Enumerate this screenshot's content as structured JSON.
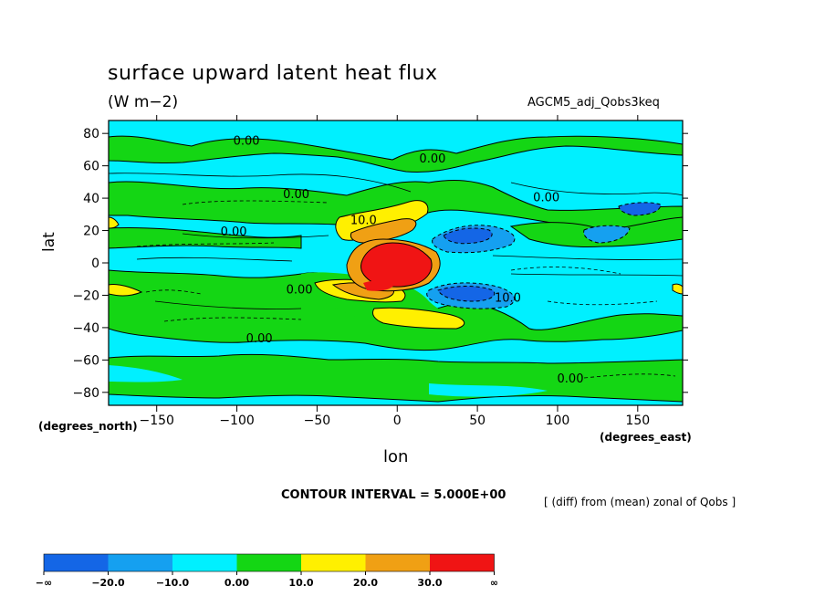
{
  "chart_data": {
    "type": "heatmap",
    "title": "surface upward latent heat flux",
    "subtitle": "(W m−2)",
    "run_label": "AGCM5_adj_Qobs3keq",
    "xlabel": "lon",
    "ylabel": "lat",
    "x_units_label": "(degrees_east)",
    "y_units_label": "(degrees_north)",
    "xlim": [
      -180,
      178
    ],
    "ylim": [
      -88,
      88
    ],
    "x_ticks": [
      -150,
      -100,
      -50,
      0,
      50,
      100,
      150
    ],
    "x_tick_labels": [
      "−150",
      "−100",
      "−50",
      "0",
      "50",
      "100",
      "150"
    ],
    "y_ticks": [
      80,
      60,
      40,
      20,
      0,
      -20,
      -40,
      -60,
      -80
    ],
    "y_tick_labels": [
      "80",
      "60",
      "40",
      "20",
      "0",
      "−20",
      "−40",
      "−60",
      "−80"
    ],
    "contour_interval_label": "CONTOUR INTERVAL = 5.000E+00",
    "diff_label": "[ (diff) from (mean) zonal of Qobs ]",
    "contour_labels": [
      {
        "text": "0.00",
        "lon": -94,
        "lat": 73
      },
      {
        "text": "0.00",
        "lon": 22,
        "lat": 62
      },
      {
        "text": "0.00",
        "lon": -63,
        "lat": 40
      },
      {
        "text": "0.00",
        "lon": 93,
        "lat": 38
      },
      {
        "text": "10.0",
        "lon": -21,
        "lat": 24
      },
      {
        "text": "0.00",
        "lon": -102,
        "lat": 17
      },
      {
        "text": "0.00",
        "lon": -61,
        "lat": -19
      },
      {
        "text": "10.0",
        "lon": 69,
        "lat": -24
      },
      {
        "text": "0.00",
        "lon": -86,
        "lat": -49
      },
      {
        "text": "0.00",
        "lon": 108,
        "lat": -74
      }
    ],
    "fill_levels": [
      {
        "color": "#1466e6",
        "label": "−∞"
      },
      {
        "color": "#15a0f0",
        "label": "−20.0"
      },
      {
        "color": "#00f0ff",
        "label": "−10.0"
      },
      {
        "color": "#14d614",
        "label": "0.00"
      },
      {
        "color": "#fff000",
        "label": "10.0"
      },
      {
        "color": "#f0a014",
        "label": "20.0"
      },
      {
        "color": "#f01414",
        "label": "30.0"
      }
    ],
    "colorbar_end_label": "∞",
    "grid": false,
    "legend": "bottom-left colorbar"
  }
}
